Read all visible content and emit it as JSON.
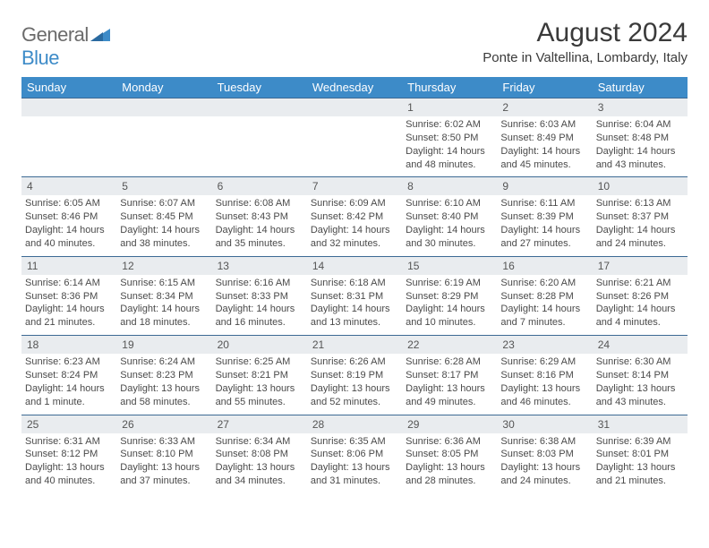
{
  "brand": {
    "part1": "General",
    "part2": "Blue"
  },
  "title": "August 2024",
  "location": "Ponte in Valtellina, Lombardy, Italy",
  "colors": {
    "header_bg": "#3d8bc8",
    "header_text": "#ffffff",
    "daynum_bg": "#e9ecef",
    "daynum_border": "#3d6a94",
    "body_text": "#4a4a4a",
    "logo_gray": "#6b6b6b",
    "logo_blue": "#3d8bc8"
  },
  "weekdays": [
    "Sunday",
    "Monday",
    "Tuesday",
    "Wednesday",
    "Thursday",
    "Friday",
    "Saturday"
  ],
  "weeks": [
    [
      null,
      null,
      null,
      null,
      {
        "n": "1",
        "sr": "6:02 AM",
        "ss": "8:50 PM",
        "dl1": "14 hours",
        "dl2": "and 48 minutes."
      },
      {
        "n": "2",
        "sr": "6:03 AM",
        "ss": "8:49 PM",
        "dl1": "14 hours",
        "dl2": "and 45 minutes."
      },
      {
        "n": "3",
        "sr": "6:04 AM",
        "ss": "8:48 PM",
        "dl1": "14 hours",
        "dl2": "and 43 minutes."
      }
    ],
    [
      {
        "n": "4",
        "sr": "6:05 AM",
        "ss": "8:46 PM",
        "dl1": "14 hours",
        "dl2": "and 40 minutes."
      },
      {
        "n": "5",
        "sr": "6:07 AM",
        "ss": "8:45 PM",
        "dl1": "14 hours",
        "dl2": "and 38 minutes."
      },
      {
        "n": "6",
        "sr": "6:08 AM",
        "ss": "8:43 PM",
        "dl1": "14 hours",
        "dl2": "and 35 minutes."
      },
      {
        "n": "7",
        "sr": "6:09 AM",
        "ss": "8:42 PM",
        "dl1": "14 hours",
        "dl2": "and 32 minutes."
      },
      {
        "n": "8",
        "sr": "6:10 AM",
        "ss": "8:40 PM",
        "dl1": "14 hours",
        "dl2": "and 30 minutes."
      },
      {
        "n": "9",
        "sr": "6:11 AM",
        "ss": "8:39 PM",
        "dl1": "14 hours",
        "dl2": "and 27 minutes."
      },
      {
        "n": "10",
        "sr": "6:13 AM",
        "ss": "8:37 PM",
        "dl1": "14 hours",
        "dl2": "and 24 minutes."
      }
    ],
    [
      {
        "n": "11",
        "sr": "6:14 AM",
        "ss": "8:36 PM",
        "dl1": "14 hours",
        "dl2": "and 21 minutes."
      },
      {
        "n": "12",
        "sr": "6:15 AM",
        "ss": "8:34 PM",
        "dl1": "14 hours",
        "dl2": "and 18 minutes."
      },
      {
        "n": "13",
        "sr": "6:16 AM",
        "ss": "8:33 PM",
        "dl1": "14 hours",
        "dl2": "and 16 minutes."
      },
      {
        "n": "14",
        "sr": "6:18 AM",
        "ss": "8:31 PM",
        "dl1": "14 hours",
        "dl2": "and 13 minutes."
      },
      {
        "n": "15",
        "sr": "6:19 AM",
        "ss": "8:29 PM",
        "dl1": "14 hours",
        "dl2": "and 10 minutes."
      },
      {
        "n": "16",
        "sr": "6:20 AM",
        "ss": "8:28 PM",
        "dl1": "14 hours",
        "dl2": "and 7 minutes."
      },
      {
        "n": "17",
        "sr": "6:21 AM",
        "ss": "8:26 PM",
        "dl1": "14 hours",
        "dl2": "and 4 minutes."
      }
    ],
    [
      {
        "n": "18",
        "sr": "6:23 AM",
        "ss": "8:24 PM",
        "dl1": "14 hours",
        "dl2": "and 1 minute."
      },
      {
        "n": "19",
        "sr": "6:24 AM",
        "ss": "8:23 PM",
        "dl1": "13 hours",
        "dl2": "and 58 minutes."
      },
      {
        "n": "20",
        "sr": "6:25 AM",
        "ss": "8:21 PM",
        "dl1": "13 hours",
        "dl2": "and 55 minutes."
      },
      {
        "n": "21",
        "sr": "6:26 AM",
        "ss": "8:19 PM",
        "dl1": "13 hours",
        "dl2": "and 52 minutes."
      },
      {
        "n": "22",
        "sr": "6:28 AM",
        "ss": "8:17 PM",
        "dl1": "13 hours",
        "dl2": "and 49 minutes."
      },
      {
        "n": "23",
        "sr": "6:29 AM",
        "ss": "8:16 PM",
        "dl1": "13 hours",
        "dl2": "and 46 minutes."
      },
      {
        "n": "24",
        "sr": "6:30 AM",
        "ss": "8:14 PM",
        "dl1": "13 hours",
        "dl2": "and 43 minutes."
      }
    ],
    [
      {
        "n": "25",
        "sr": "6:31 AM",
        "ss": "8:12 PM",
        "dl1": "13 hours",
        "dl2": "and 40 minutes."
      },
      {
        "n": "26",
        "sr": "6:33 AM",
        "ss": "8:10 PM",
        "dl1": "13 hours",
        "dl2": "and 37 minutes."
      },
      {
        "n": "27",
        "sr": "6:34 AM",
        "ss": "8:08 PM",
        "dl1": "13 hours",
        "dl2": "and 34 minutes."
      },
      {
        "n": "28",
        "sr": "6:35 AM",
        "ss": "8:06 PM",
        "dl1": "13 hours",
        "dl2": "and 31 minutes."
      },
      {
        "n": "29",
        "sr": "6:36 AM",
        "ss": "8:05 PM",
        "dl1": "13 hours",
        "dl2": "and 28 minutes."
      },
      {
        "n": "30",
        "sr": "6:38 AM",
        "ss": "8:03 PM",
        "dl1": "13 hours",
        "dl2": "and 24 minutes."
      },
      {
        "n": "31",
        "sr": "6:39 AM",
        "ss": "8:01 PM",
        "dl1": "13 hours",
        "dl2": "and 21 minutes."
      }
    ]
  ],
  "labels": {
    "sunrise_prefix": "Sunrise: ",
    "sunset_prefix": "Sunset: ",
    "daylight_prefix": "Daylight: "
  }
}
